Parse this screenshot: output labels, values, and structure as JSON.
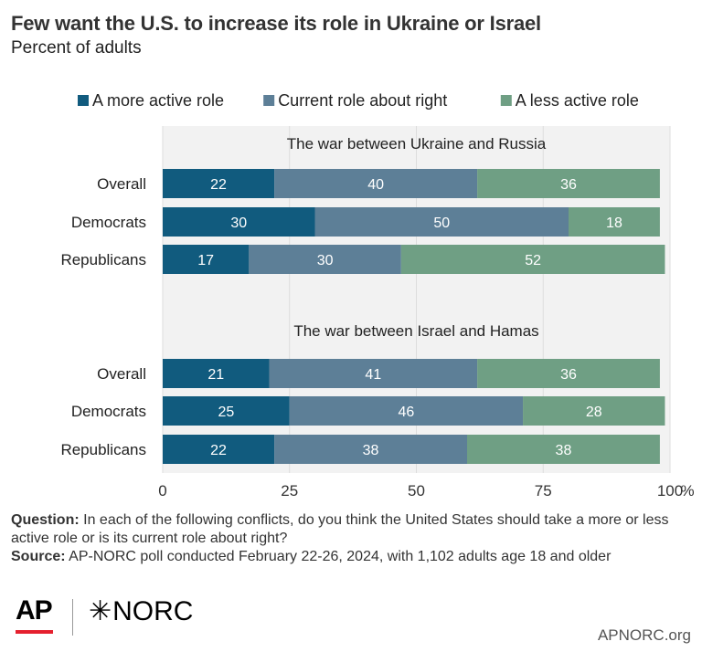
{
  "header": {
    "title": "Few want the U.S. to increase its role in Ukraine or Israel",
    "subtitle": "Percent of adults"
  },
  "chart_data": {
    "type": "bar",
    "orientation": "horizontal",
    "stacked": true,
    "xlim": [
      0,
      100
    ],
    "x_ticks": [
      "0",
      "25",
      "50",
      "75",
      "100"
    ],
    "x_unit": "%",
    "grid": true,
    "legend_position": "top-right",
    "series": [
      {
        "name": "A more active role",
        "color": "#115b7e"
      },
      {
        "name": "Current role about right",
        "color": "#5d7f97"
      },
      {
        "name": "A less active role",
        "color": "#6f9f84"
      }
    ],
    "panels": [
      {
        "title": "The war between Ukraine and Russia",
        "categories": [
          "Overall",
          "Democrats",
          "Republicans"
        ],
        "values": [
          [
            22,
            40,
            36
          ],
          [
            30,
            50,
            18
          ],
          [
            17,
            30,
            52
          ]
        ]
      },
      {
        "title": "The war between Israel and Hamas",
        "categories": [
          "Overall",
          "Democrats",
          "Republicans"
        ],
        "values": [
          [
            21,
            41,
            36
          ],
          [
            25,
            46,
            28
          ],
          [
            22,
            38,
            38
          ]
        ]
      }
    ]
  },
  "footer": {
    "question_label": "Question:",
    "question_text": "In each of the following conflicts, do you think the United States should take a more or less active role or is its current role about right?",
    "source_label": "Source:",
    "source_text": "AP-NORC poll conducted February 22-26, 2024, with 1,102 adults age 18 and older"
  },
  "branding": {
    "ap_logo": "AP",
    "norc_logo": "NORC",
    "norc_icon": "star-icon",
    "site": "APNORC.org",
    "ap_accent_color": "#e5202e"
  }
}
